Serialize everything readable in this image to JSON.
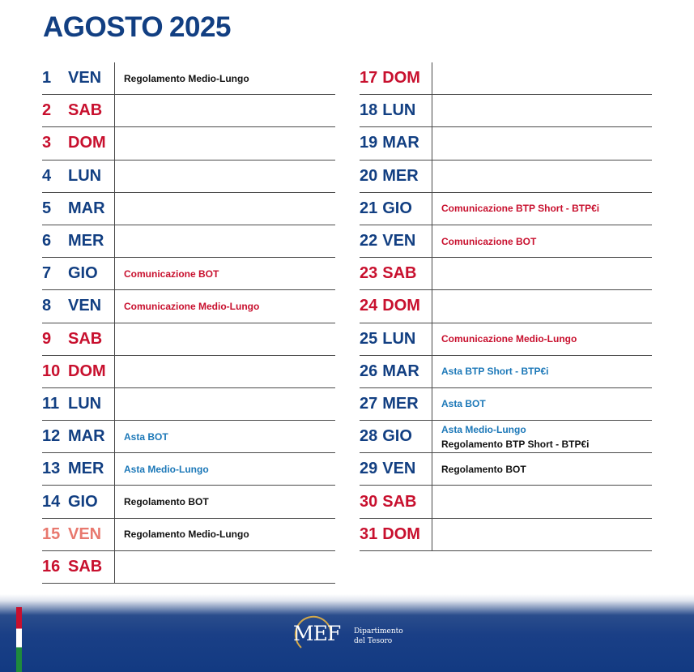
{
  "header": {
    "month": "AGOSTO",
    "year": "2025"
  },
  "left_days": [
    {
      "num": "1",
      "name": "VEN",
      "color": "blue",
      "events": [
        {
          "text": "Regolamento Medio-Lungo",
          "type": "reg"
        }
      ]
    },
    {
      "num": "2",
      "name": "SAB",
      "color": "red",
      "events": []
    },
    {
      "num": "3",
      "name": "DOM",
      "color": "red",
      "events": []
    },
    {
      "num": "4",
      "name": "LUN",
      "color": "blue",
      "events": []
    },
    {
      "num": "5",
      "name": "MAR",
      "color": "blue",
      "events": []
    },
    {
      "num": "6",
      "name": "MER",
      "color": "blue",
      "events": []
    },
    {
      "num": "7",
      "name": "GIO",
      "color": "blue",
      "events": [
        {
          "text": "Comunicazione BOT",
          "type": "comm"
        }
      ]
    },
    {
      "num": "8",
      "name": "VEN",
      "color": "blue",
      "events": [
        {
          "text": "Comunicazione Medio-Lungo",
          "type": "comm"
        }
      ]
    },
    {
      "num": "9",
      "name": "SAB",
      "color": "red",
      "events": []
    },
    {
      "num": "10",
      "name": "DOM",
      "color": "red",
      "events": []
    },
    {
      "num": "11",
      "name": "LUN",
      "color": "blue",
      "events": []
    },
    {
      "num": "12",
      "name": "MAR",
      "color": "blue",
      "events": [
        {
          "text": "Asta BOT",
          "type": "asta"
        }
      ]
    },
    {
      "num": "13",
      "name": "MER",
      "color": "blue",
      "events": [
        {
          "text": "Asta Medio-Lungo",
          "type": "asta"
        }
      ]
    },
    {
      "num": "14",
      "name": "GIO",
      "color": "blue",
      "events": [
        {
          "text": "Regolamento BOT",
          "type": "reg"
        }
      ]
    },
    {
      "num": "15",
      "name": "VEN",
      "color": "pink",
      "events": [
        {
          "text": "Regolamento Medio-Lungo",
          "type": "reg"
        }
      ]
    },
    {
      "num": "16",
      "name": "SAB",
      "color": "red",
      "events": []
    }
  ],
  "right_days": [
    {
      "num": "17",
      "name": "DOM",
      "color": "red",
      "events": []
    },
    {
      "num": "18",
      "name": "LUN",
      "color": "blue",
      "events": []
    },
    {
      "num": "19",
      "name": "MAR",
      "color": "blue",
      "events": []
    },
    {
      "num": "20",
      "name": "MER",
      "color": "blue",
      "events": []
    },
    {
      "num": "21",
      "name": "GIO",
      "color": "blue",
      "events": [
        {
          "text": "Comunicazione BTP Short - BTP€i",
          "type": "comm"
        }
      ]
    },
    {
      "num": "22",
      "name": "VEN",
      "color": "blue",
      "events": [
        {
          "text": "Comunicazione BOT",
          "type": "comm"
        }
      ]
    },
    {
      "num": "23",
      "name": "SAB",
      "color": "red",
      "events": []
    },
    {
      "num": "24",
      "name": "DOM",
      "color": "red",
      "events": []
    },
    {
      "num": "25",
      "name": "LUN",
      "color": "blue",
      "events": [
        {
          "text": "Comunicazione Medio-Lungo",
          "type": "comm"
        }
      ]
    },
    {
      "num": "26",
      "name": "MAR",
      "color": "blue",
      "events": [
        {
          "text": "Asta BTP Short - BTP€i",
          "type": "asta"
        }
      ]
    },
    {
      "num": "27",
      "name": "MER",
      "color": "blue",
      "events": [
        {
          "text": "Asta BOT",
          "type": "asta"
        }
      ]
    },
    {
      "num": "28",
      "name": "GIO",
      "color": "blue",
      "events": [
        {
          "text": "Asta Medio-Lungo",
          "type": "asta"
        },
        {
          "text": "Regolamento BTP Short - BTP€i",
          "type": "reg"
        }
      ]
    },
    {
      "num": "29",
      "name": "VEN",
      "color": "blue",
      "events": [
        {
          "text": "Regolamento BOT",
          "type": "reg"
        }
      ]
    },
    {
      "num": "30",
      "name": "SAB",
      "color": "red",
      "events": []
    },
    {
      "num": "31",
      "name": "DOM",
      "color": "red",
      "events": []
    }
  ],
  "footer": {
    "logo_text": "MEF",
    "dept_line1": "Dipartimento",
    "dept_line2": "del Tesoro"
  },
  "colors": {
    "blue": "#123f82",
    "red": "#c8102e",
    "pink": "#e8786e",
    "asta": "#1c78b8"
  }
}
